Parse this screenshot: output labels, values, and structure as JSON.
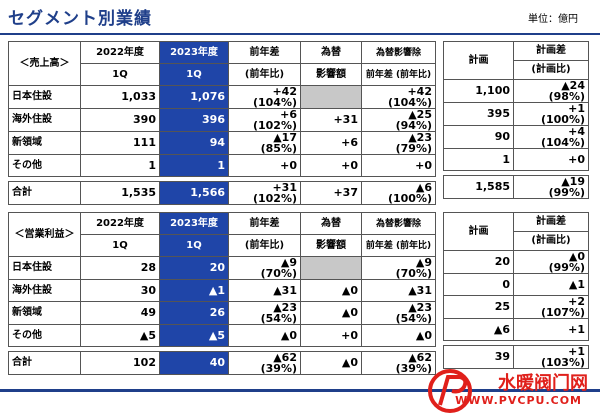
{
  "header": {
    "title": "セグメント別業績",
    "unit": "単位：億円"
  },
  "col_headers": {
    "prev_year": "2022年度",
    "prev_q": "1Q",
    "cur_year": "2023年度",
    "cur_q": "1Q",
    "yoy": "前年差",
    "yoy_sub": "(前年比)",
    "fx": "為替",
    "fx_sub": "影響額",
    "ex_fx": "為替影響除",
    "ex_fx_sub": "前年差 (前年比)",
    "plan": "計画",
    "plan_diff": "計画差",
    "plan_diff_sub": "(計画比)"
  },
  "sales": {
    "section_label": "＜売上高＞",
    "rows": [
      {
        "name": "日本住設",
        "prev": "1,033",
        "cur": "1,076",
        "yoy": "+42",
        "yoy_pct": "(104%)",
        "fx": "",
        "exfx": "+42",
        "exfx_pct": "(104%)",
        "plan": "1,100",
        "pdiff": "▲24",
        "pdiff_pct": "(98%)"
      },
      {
        "name": "海外住設",
        "prev": "390",
        "cur": "396",
        "yoy": "+6",
        "yoy_pct": "(102%)",
        "fx": "+31",
        "exfx": "▲25",
        "exfx_pct": "(94%)",
        "plan": "395",
        "pdiff": "+1",
        "pdiff_pct": "(100%)"
      },
      {
        "name": "新領域",
        "prev": "111",
        "cur": "94",
        "yoy": "▲17",
        "yoy_pct": "(85%)",
        "fx": "+6",
        "exfx": "▲23",
        "exfx_pct": "(79%)",
        "plan": "90",
        "pdiff": "+4",
        "pdiff_pct": "(104%)"
      },
      {
        "name": "その他",
        "prev": "1",
        "cur": "1",
        "yoy": "+0",
        "yoy_pct": "",
        "fx": "+0",
        "exfx": "+0",
        "exfx_pct": "",
        "plan": "1",
        "pdiff": "+0",
        "pdiff_pct": ""
      }
    ],
    "total": {
      "name": "合計",
      "prev": "1,535",
      "cur": "1,566",
      "yoy": "+31",
      "yoy_pct": "(102%)",
      "fx": "+37",
      "exfx": "▲6",
      "exfx_pct": "(100%)",
      "plan": "1,585",
      "pdiff": "▲19",
      "pdiff_pct": "(99%)"
    }
  },
  "profit": {
    "section_label": "＜営業利益＞",
    "rows": [
      {
        "name": "日本住設",
        "prev": "28",
        "cur": "20",
        "yoy": "▲9",
        "yoy_pct": "(70%)",
        "fx": "",
        "exfx": "▲9",
        "exfx_pct": "(70%)",
        "plan": "20",
        "pdiff": "▲0",
        "pdiff_pct": "(99%)"
      },
      {
        "name": "海外住設",
        "prev": "30",
        "cur": "▲1",
        "yoy": "▲31",
        "yoy_pct": "",
        "fx": "▲0",
        "exfx": "▲31",
        "exfx_pct": "",
        "plan": "0",
        "pdiff": "▲1",
        "pdiff_pct": ""
      },
      {
        "name": "新領域",
        "prev": "49",
        "cur": "26",
        "yoy": "▲23",
        "yoy_pct": "(54%)",
        "fx": "▲0",
        "exfx": "▲23",
        "exfx_pct": "(54%)",
        "plan": "25",
        "pdiff": "+2",
        "pdiff_pct": "(107%)"
      },
      {
        "name": "その他",
        "prev": "▲5",
        "cur": "▲5",
        "yoy": "▲0",
        "yoy_pct": "",
        "fx": "+0",
        "exfx": "▲0",
        "exfx_pct": "",
        "plan": "▲6",
        "pdiff": "+1",
        "pdiff_pct": ""
      }
    ],
    "total": {
      "name": "合計",
      "prev": "102",
      "cur": "40",
      "yoy": "▲62",
      "yoy_pct": "(39%)",
      "fx": "▲0",
      "exfx": "▲62",
      "exfx_pct": "(39%)",
      "plan": "39",
      "pdiff": "+1",
      "pdiff_pct": "(103%)"
    }
  },
  "watermark": {
    "text": "水暖阀门网",
    "url": "WWW.PVCPU.COM"
  }
}
